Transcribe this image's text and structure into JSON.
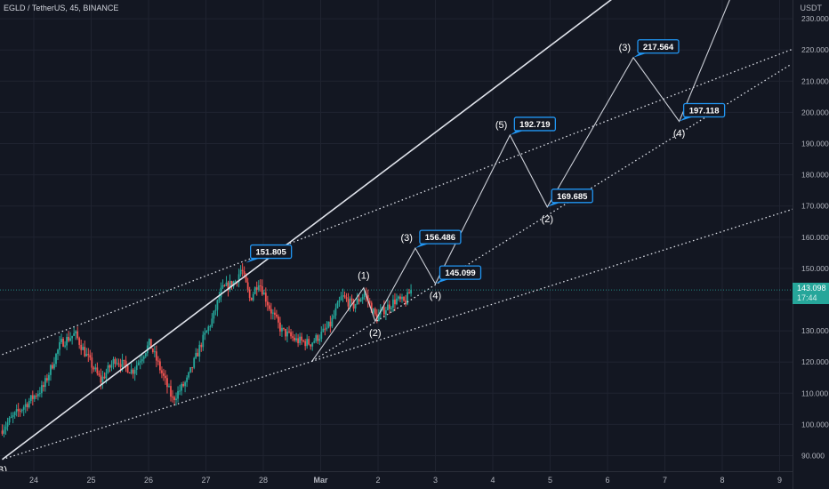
{
  "legend": "EGLD / TetherUS, 45, BINANCE",
  "currency_label": "USDT",
  "last_price": {
    "value": "143.098",
    "countdown": "17:44",
    "color": "#26a69a"
  },
  "colors": {
    "background": "#131722",
    "grid": "#1f2330",
    "axis_text": "#b2b5be",
    "up": "#26a69a",
    "down": "#ef5350",
    "drawing": "#e0e3eb",
    "label_border": "#2196f3",
    "label_bg": "#131722"
  },
  "chart_data": {
    "type": "candlestick",
    "title": "EGLD / TetherUS, 45, BINANCE",
    "x_axis": {
      "ticks": [
        "24",
        "25",
        "26",
        "27",
        "28",
        "Mar",
        "2",
        "3",
        "4",
        "5",
        "6",
        "7",
        "8",
        "9"
      ],
      "tick_days": [
        0,
        1,
        2,
        3,
        4,
        5,
        6,
        7,
        8,
        9,
        10,
        11,
        12,
        13
      ]
    },
    "y_axis": {
      "label": "USDT",
      "range": [
        87,
        234
      ],
      "ticks": [
        90,
        100,
        110,
        120,
        130,
        140,
        150,
        160,
        170,
        180,
        190,
        200,
        210,
        220,
        230
      ]
    },
    "grid": true,
    "price_path": [
      [
        -0.55,
        98
      ],
      [
        -0.3,
        103
      ],
      [
        0.2,
        112
      ],
      [
        0.5,
        126
      ],
      [
        0.75,
        129
      ],
      [
        0.95,
        122
      ],
      [
        1.2,
        114
      ],
      [
        1.45,
        121
      ],
      [
        1.75,
        117
      ],
      [
        2.05,
        126
      ],
      [
        2.25,
        117
      ],
      [
        2.45,
        108
      ],
      [
        2.7,
        114
      ],
      [
        2.95,
        126
      ],
      [
        3.15,
        134
      ],
      [
        3.3,
        143
      ],
      [
        3.55,
        146
      ],
      [
        3.65,
        150
      ],
      [
        3.8,
        140
      ],
      [
        3.95,
        146
      ],
      [
        4.15,
        137
      ],
      [
        4.35,
        130
      ],
      [
        4.6,
        127
      ],
      [
        4.85,
        126
      ],
      [
        5.05,
        129
      ],
      [
        5.2,
        132
      ],
      [
        5.4,
        141
      ],
      [
        5.6,
        138
      ],
      [
        5.8,
        142
      ],
      [
        6.0,
        134
      ],
      [
        6.15,
        137
      ],
      [
        6.35,
        140
      ],
      [
        6.5,
        139
      ],
      [
        6.6,
        143
      ]
    ],
    "wave_projection": {
      "points": [
        {
          "day": 4.85,
          "price": 120.3,
          "label": ""
        },
        {
          "day": 5.75,
          "price": 143.8,
          "label": "(1)"
        },
        {
          "day": 5.95,
          "price": 133.1,
          "label": "(2)"
        },
        {
          "day": 6.65,
          "price": 156.486,
          "label": "(3)"
        },
        {
          "day": 7.0,
          "price": 145.099,
          "label": "(4)"
        },
        {
          "day": 8.3,
          "price": 192.719,
          "label": "(5)"
        },
        {
          "day": 8.95,
          "price": 169.685,
          "label": "(2)"
        },
        {
          "day": 10.45,
          "price": 217.564,
          "label": "(3)"
        },
        {
          "day": 11.25,
          "price": 197.118,
          "label": "(4)"
        },
        {
          "day": 12.15,
          "price": 237.0,
          "label": ""
        }
      ],
      "price_labels": [
        "151.805",
        "156.486",
        "145.099",
        "192.719",
        "169.685",
        "217.564",
        "197.118"
      ]
    },
    "price_label_anchors": [
      {
        "day": 3.7,
        "price": 151.805
      },
      {
        "day": 6.65,
        "price": 156.486
      },
      {
        "day": 7.0,
        "price": 145.099
      },
      {
        "day": 8.3,
        "price": 192.719
      },
      {
        "day": 8.95,
        "price": 169.685
      },
      {
        "day": 10.45,
        "price": 217.564
      },
      {
        "day": 11.25,
        "price": 197.118
      }
    ],
    "trendlines": [
      {
        "style": "solid",
        "from": [
          -0.55,
          88.8
        ],
        "to": [
          10.2,
          238
        ]
      },
      {
        "style": "dotted",
        "from": [
          -0.55,
          122.4
        ],
        "to": [
          13.3,
          220.8
        ]
      },
      {
        "style": "dotted",
        "from": [
          -0.55,
          88.8
        ],
        "to": [
          13.3,
          169.4
        ]
      },
      {
        "style": "dotted",
        "from": [
          4.85,
          120.3
        ],
        "to": [
          13.2,
          215.4
        ]
      }
    ],
    "corner_label": "(B)"
  }
}
